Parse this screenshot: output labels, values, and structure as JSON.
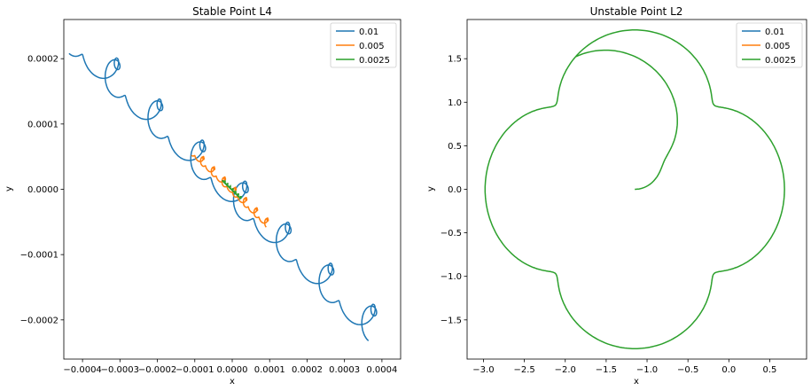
{
  "chart_data": [
    {
      "type": "line",
      "title": "Stable Point L4",
      "xlabel": "x",
      "ylabel": "y",
      "xlim": [
        -0.00045,
        0.00045
      ],
      "ylim": [
        -0.00026,
        0.00026
      ],
      "xticks": [
        {
          "v": -0.0004,
          "label": "−0.0004"
        },
        {
          "v": -0.0003,
          "label": "−0.0003"
        },
        {
          "v": -0.0002,
          "label": "−0.0002"
        },
        {
          "v": -0.0001,
          "label": "−0.0001"
        },
        {
          "v": 0.0,
          "label": "0.0000"
        },
        {
          "v": 0.0001,
          "label": "0.0001"
        },
        {
          "v": 0.0002,
          "label": "0.0002"
        },
        {
          "v": 0.0003,
          "label": "0.0003"
        },
        {
          "v": 0.0004,
          "label": "0.0004"
        }
      ],
      "yticks": [
        {
          "v": -0.0002,
          "label": "−0.0002"
        },
        {
          "v": -0.0001,
          "label": "−0.0001"
        },
        {
          "v": 0.0,
          "label": "0.0000"
        },
        {
          "v": 0.0001,
          "label": "0.0001"
        },
        {
          "v": 0.0002,
          "label": "0.0002"
        }
      ],
      "legend_position": "top-right",
      "grid": false,
      "series": [
        {
          "name": "0.01",
          "color": "#1f77b4",
          "path": {
            "cx": 0.0,
            "cy": 0.0,
            "dx": 0.0004,
            "dy": -0.00022,
            "a": 3.6e-05,
            "b": 1.2e-05,
            "ra": 1.3e-05,
            "loops": 7
          }
        },
        {
          "name": "0.005",
          "color": "#ff7f0e",
          "path": {
            "cx": 0.0,
            "cy": 0.0,
            "dx": 0.0001,
            "dy": -5.5e-05,
            "a": 9e-06,
            "b": 3e-06,
            "ra": 3e-06,
            "loops": 7
          }
        },
        {
          "name": "0.0025",
          "color": "#2ca02c",
          "path": {
            "cx": 0.0,
            "cy": 0.0,
            "dx": 2.5e-05,
            "dy": -1.4e-05,
            "a": 2.2e-06,
            "b": 8e-07,
            "ra": 8e-07,
            "loops": 7
          }
        }
      ]
    },
    {
      "type": "line",
      "title": "Unstable Point L2",
      "xlabel": "x",
      "ylabel": "y",
      "xlim": [
        -3.2,
        0.95
      ],
      "ylim": [
        -1.95,
        1.95
      ],
      "xticks": [
        {
          "v": -3.0,
          "label": "−3.0"
        },
        {
          "v": -2.5,
          "label": "−2.5"
        },
        {
          "v": -2.0,
          "label": "−2.0"
        },
        {
          "v": -1.5,
          "label": "−1.5"
        },
        {
          "v": -1.0,
          "label": "−1.0"
        },
        {
          "v": -0.5,
          "label": "−0.5"
        },
        {
          "v": 0.0,
          "label": "0.0"
        },
        {
          "v": 0.5,
          "label": "0.5"
        }
      ],
      "yticks": [
        {
          "v": -1.5,
          "label": "−1.5"
        },
        {
          "v": -1.0,
          "label": "−1.0"
        },
        {
          "v": -0.5,
          "label": "−0.5"
        },
        {
          "v": 0.0,
          "label": "0.0"
        },
        {
          "v": 0.5,
          "label": "0.5"
        },
        {
          "v": 1.0,
          "label": "1.0"
        },
        {
          "v": 1.5,
          "label": "1.5"
        }
      ],
      "legend_position": "top-right",
      "grid": false,
      "series": [
        {
          "name": "0.01",
          "color": "#1f77b4",
          "path": null
        },
        {
          "name": "0.005",
          "color": "#ff7f0e",
          "path": null
        },
        {
          "name": "0.0025",
          "color": "#2ca02c",
          "path": {
            "center": [
              -1.15,
              0.0
            ],
            "R": 1.6,
            "r": 0.23,
            "petals": 5,
            "turns": 2.5
          }
        }
      ]
    }
  ]
}
